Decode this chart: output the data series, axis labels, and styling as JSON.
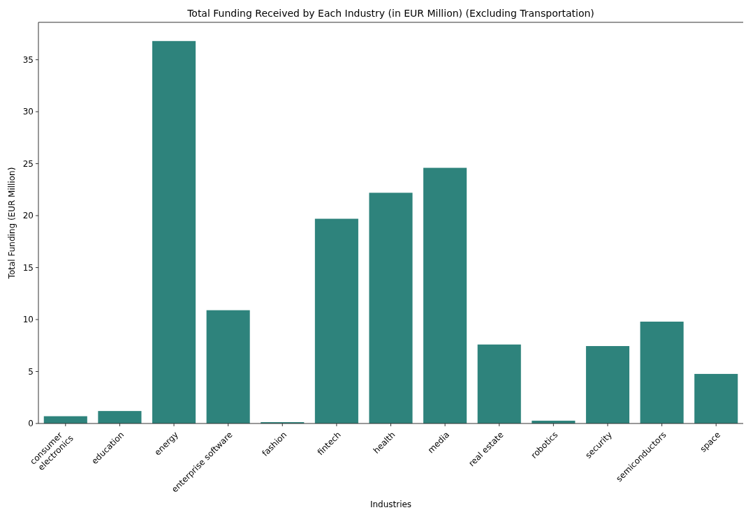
{
  "chart_data": {
    "type": "bar",
    "title": "Total Funding Received by Each Industry (in EUR Million) (Excluding Transportation)",
    "xlabel": "Industries",
    "ylabel": "Total Funding (EUR Million)",
    "categories": [
      "consumer\nelectronics",
      "education",
      "energy",
      "enterprise software",
      "fashion",
      "fintech",
      "health",
      "media",
      "real estate",
      "robotics",
      "security",
      "semiconductors",
      "space"
    ],
    "values": [
      0.7,
      1.2,
      36.8,
      10.9,
      0.13,
      19.7,
      22.2,
      24.6,
      7.6,
      0.27,
      7.45,
      9.8,
      4.77
    ],
    "color": "#2e837c",
    "ylim": [
      0,
      38.6
    ],
    "yticks": [
      0,
      5,
      10,
      15,
      20,
      25,
      30,
      35
    ]
  }
}
